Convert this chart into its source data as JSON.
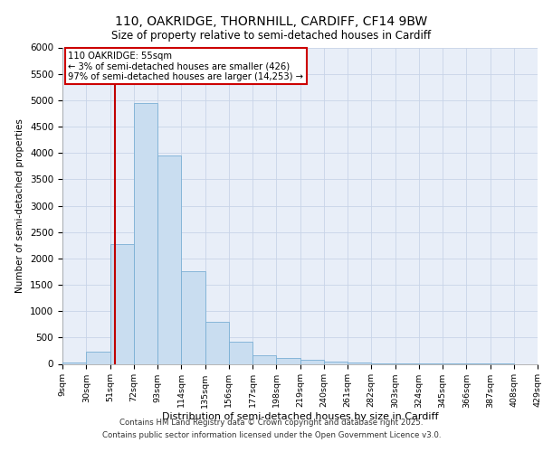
{
  "title_line1": "110, OAKRIDGE, THORNHILL, CARDIFF, CF14 9BW",
  "title_line2": "Size of property relative to semi-detached houses in Cardiff",
  "xlabel": "Distribution of semi-detached houses by size in Cardiff",
  "ylabel": "Number of semi-detached properties",
  "footer_line1": "Contains HM Land Registry data © Crown copyright and database right 2025.",
  "footer_line2": "Contains public sector information licensed under the Open Government Licence v3.0.",
  "annotation_line1": "110 OAKRIDGE: 55sqm",
  "annotation_line2": "← 3% of semi-detached houses are smaller (426)",
  "annotation_line3": "97% of semi-detached houses are larger (14,253) →",
  "property_size": 55,
  "bin_edges": [
    9,
    30,
    51,
    72,
    93,
    114,
    135,
    156,
    177,
    198,
    219,
    240,
    261,
    282,
    303,
    324,
    345,
    366,
    387,
    408,
    429
  ],
  "bin_labels": [
    "9sqm",
    "30sqm",
    "51sqm",
    "72sqm",
    "93sqm",
    "114sqm",
    "135sqm",
    "156sqm",
    "177sqm",
    "198sqm",
    "219sqm",
    "240sqm",
    "261sqm",
    "282sqm",
    "303sqm",
    "324sqm",
    "345sqm",
    "366sqm",
    "387sqm",
    "408sqm",
    "429sqm"
  ],
  "counts": [
    30,
    230,
    2280,
    4950,
    3950,
    1750,
    800,
    420,
    165,
    110,
    70,
    40,
    20,
    10,
    5,
    3,
    2,
    1,
    1,
    0
  ],
  "bar_color": "#c9ddf0",
  "bar_edgecolor": "#7aafd4",
  "vline_color": "#c00000",
  "grid_color": "#c8d4e8",
  "bg_color": "#e8eef8",
  "ylim": [
    0,
    6000
  ],
  "yticks": [
    0,
    500,
    1000,
    1500,
    2000,
    2500,
    3000,
    3500,
    4000,
    4500,
    5000,
    5500,
    6000
  ]
}
